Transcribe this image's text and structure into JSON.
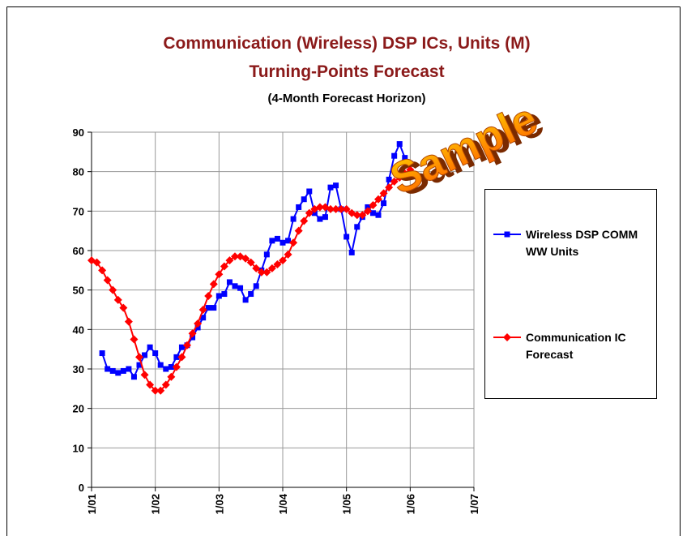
{
  "chart_data": {
    "type": "line",
    "title": "Communication (Wireless) DSP ICs, Units (M)",
    "subtitle": "Turning-Points Forecast",
    "annotation": "(4-Month Forecast Horizon)",
    "watermark": "Sample",
    "categories": [
      "1/01",
      null,
      null,
      null,
      null,
      null,
      null,
      null,
      null,
      null,
      null,
      null,
      "1/02",
      null,
      null,
      null,
      null,
      null,
      null,
      null,
      null,
      null,
      null,
      null,
      "1/03",
      null,
      null,
      null,
      null,
      null,
      null,
      null,
      null,
      null,
      null,
      null,
      "1/04",
      null,
      null,
      null,
      null,
      null,
      null,
      null,
      null,
      null,
      null,
      null,
      "1/05",
      null,
      null,
      null,
      null,
      null,
      null,
      null,
      null,
      null,
      null,
      null,
      "1/06",
      null,
      null,
      null,
      null,
      null,
      null,
      null,
      null,
      null,
      null,
      null,
      "1/07"
    ],
    "series": [
      {
        "name": "Wireless DSP COMM WW Units",
        "color": "#0000ff",
        "marker": "square",
        "values": [
          null,
          null,
          34,
          30,
          29.5,
          29,
          29.5,
          30,
          28,
          31,
          33.5,
          35.5,
          34,
          31,
          30,
          30.5,
          33,
          35.5,
          36,
          38,
          40.5,
          43,
          45.5,
          45.5,
          48.5,
          49,
          52,
          51,
          50.5,
          47.5,
          49,
          51,
          55,
          59,
          62.5,
          63,
          62,
          62.5,
          68,
          71,
          73,
          75,
          69.5,
          68,
          68.5,
          76,
          76.5,
          70.5,
          63.5,
          59.5,
          66,
          68.5,
          71,
          69.5,
          69,
          72,
          78,
          84,
          87,
          83.5,
          82,
          null,
          null,
          null,
          null,
          null,
          null,
          null,
          null,
          null,
          null,
          null,
          null
        ]
      },
      {
        "name": "Communication IC Forecast",
        "color": "#ff0000",
        "marker": "diamond",
        "values": [
          57.5,
          57,
          55,
          52.5,
          50,
          47.5,
          45.5,
          42,
          37.5,
          33,
          28.5,
          26,
          24.5,
          24.5,
          26,
          28,
          30.5,
          33,
          36,
          39,
          41.5,
          45,
          48.5,
          51.5,
          54,
          56,
          57.5,
          58.5,
          58.5,
          58,
          57,
          55.5,
          54.5,
          54.5,
          55.5,
          56.5,
          57.5,
          59,
          62,
          65,
          67.5,
          69.5,
          70.5,
          71,
          71,
          70.5,
          70.5,
          70.5,
          70.5,
          69.5,
          69,
          69,
          70,
          71.5,
          73,
          74.5,
          76,
          77.5,
          78.5,
          79.5,
          80.5,
          null,
          null,
          null,
          null,
          null,
          null,
          null,
          null,
          null,
          null,
          null,
          null
        ]
      }
    ],
    "ylim": [
      0,
      90
    ],
    "yticks": [
      0,
      10,
      20,
      30,
      40,
      50,
      60,
      70,
      80,
      90
    ],
    "grid": true,
    "legend": "right"
  }
}
